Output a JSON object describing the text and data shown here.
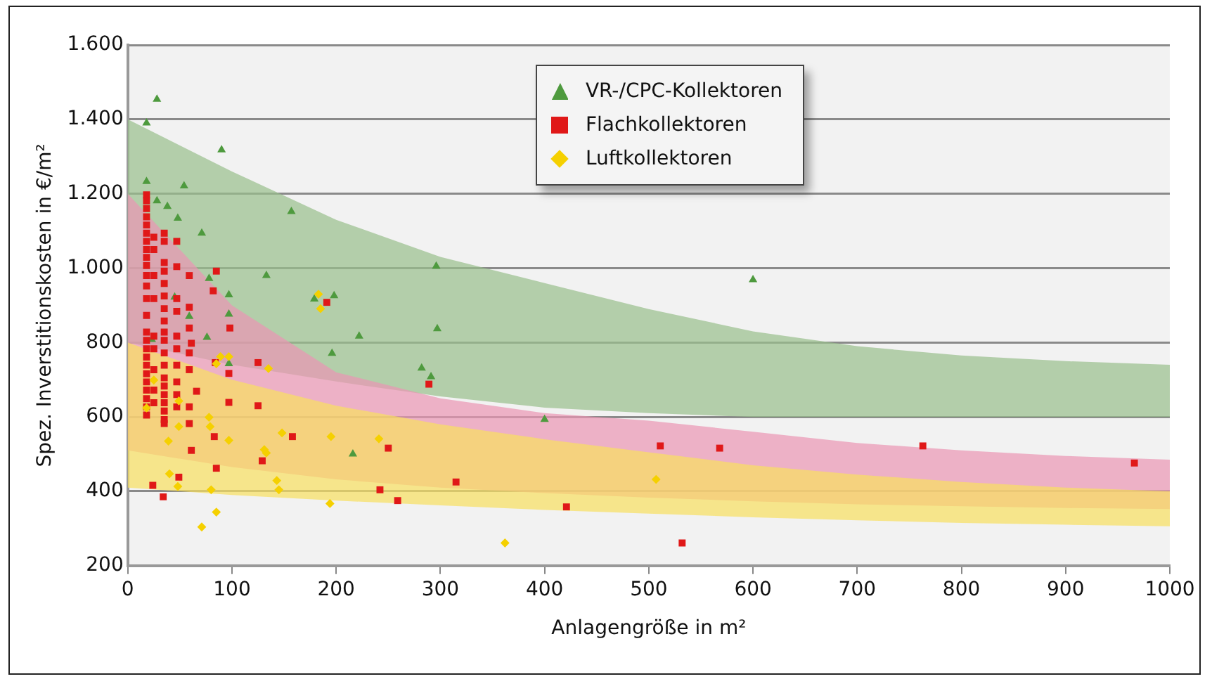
{
  "chart_data": {
    "type": "scatter",
    "xlabel": "Anlagengröße in m²",
    "ylabel": "Spez. Inverstitionskosten in €/m²",
    "xlim": [
      0,
      1000
    ],
    "xticks": [
      0,
      100,
      200,
      300,
      400,
      500,
      600,
      700,
      800,
      900,
      1000
    ],
    "ylim": [
      200,
      1600
    ],
    "yticks": [
      {
        "value": 200,
        "label": "200"
      },
      {
        "value": 400,
        "label": "400"
      },
      {
        "value": 600,
        "label": "600"
      },
      {
        "value": 800,
        "label": "800"
      },
      {
        "value": 1000,
        "label": "1.000"
      },
      {
        "value": 1200,
        "label": "1.200"
      },
      {
        "value": 1400,
        "label": "1.400"
      },
      {
        "value": 1600,
        "label": "1.600"
      }
    ],
    "grid": "y",
    "legend": "top",
    "series": [
      {
        "type": "area",
        "color": "#98bf8c",
        "x": [
          0,
          100,
          200,
          300,
          400,
          500,
          600,
          700,
          800,
          900,
          1000
        ],
        "values": [
          null,
          null,
          null,
          null,
          null,
          null,
          null,
          null,
          null,
          null,
          null
        ],
        "upper": [
          1400,
          1260,
          1130,
          1030,
          960,
          890,
          830,
          790,
          765,
          750,
          740
        ],
        "lower": [
          800,
          740,
          695,
          655,
          625,
          610,
          600,
          600,
          600,
          600,
          600
        ]
      },
      {
        "type": "area",
        "color": "#eb95b3",
        "x": [
          0,
          100,
          200,
          300,
          400,
          500,
          600,
          700,
          800,
          900,
          1000
        ],
        "values": [
          null,
          null,
          null,
          null,
          null,
          null,
          null,
          null,
          null,
          null,
          null
        ],
        "upper": [
          1200,
          900,
          720,
          650,
          610,
          590,
          560,
          530,
          510,
          495,
          485
        ],
        "lower": [
          510,
          465,
          432,
          410,
          395,
          383,
          373,
          365,
          360,
          355,
          352
        ]
      },
      {
        "type": "area",
        "color": "#f8e060",
        "x": [
          0,
          100,
          200,
          300,
          400,
          500,
          600,
          700,
          800,
          900,
          1000
        ],
        "values": [
          null,
          null,
          null,
          null,
          null,
          null,
          null,
          null,
          null,
          null,
          null
        ],
        "upper": [
          800,
          700,
          630,
          580,
          540,
          505,
          470,
          445,
          425,
          410,
          400
        ],
        "lower": [
          410,
          390,
          375,
          362,
          350,
          340,
          330,
          322,
          315,
          310,
          306
        ]
      },
      {
        "name": "VR-/CPC-Kollektoren",
        "color": "#4e9a3e",
        "marker": "triangle",
        "x": [
          28,
          18,
          90,
          18,
          54,
          28,
          38,
          48,
          157,
          71,
          296,
          133,
          78,
          97,
          198,
          179,
          45,
          97,
          59,
          297,
          222,
          76,
          23,
          196,
          97,
          282,
          291,
          216,
          600,
          400
        ],
        "values": [
          1454,
          1390,
          1318,
          1233,
          1221,
          1181,
          1166,
          1134,
          1152,
          1094,
          1005,
          980,
          972,
          928,
          926,
          917,
          922,
          876,
          870,
          837,
          817,
          814,
          808,
          771,
          743,
          731,
          708,
          500,
          969,
          593
        ]
      },
      {
        "name": "Flachkollektoren",
        "color": "#e01818",
        "marker": "square",
        "x": [
          18,
          18,
          18,
          18,
          18,
          18,
          18,
          18,
          18,
          18,
          18,
          18,
          18,
          18,
          18,
          18,
          18,
          18,
          18,
          18,
          18,
          18,
          18,
          18,
          18,
          35,
          35,
          35,
          35,
          35,
          35,
          35,
          35,
          35,
          35,
          35,
          35,
          35,
          35,
          35,
          35,
          35,
          35,
          35,
          25,
          25,
          25,
          25,
          25,
          25,
          25,
          25,
          25,
          47,
          47,
          47,
          47,
          47,
          47,
          47,
          47,
          47,
          47,
          59,
          59,
          59,
          59,
          59,
          59,
          59,
          85,
          82,
          98,
          191,
          61,
          84,
          125,
          97,
          66,
          97,
          125,
          289,
          83,
          158,
          61,
          129,
          250,
          85,
          49,
          24,
          34,
          315,
          242,
          259,
          511,
          568,
          763,
          966,
          421,
          532
        ],
        "values": [
          1197,
          1181,
          1160,
          1138,
          1116,
          1094,
          1072,
          1050,
          1029,
          1007,
          980,
          952,
          918,
          873,
          828,
          806,
          783,
          761,
          739,
          716,
          694,
          672,
          649,
          627,
          605,
          1094,
          1072,
          1015,
          992,
          959,
          925,
          891,
          858,
          828,
          806,
          772,
          739,
          705,
          683,
          660,
          638,
          616,
          593,
          582,
          1083,
          1050,
          980,
          918,
          817,
          783,
          727,
          672,
          638,
          1072,
          1004,
          918,
          884,
          817,
          783,
          739,
          694,
          660,
          627,
          980,
          895,
          839,
          772,
          727,
          627,
          582,
          992,
          939,
          839,
          908,
          798,
          746,
          746,
          717,
          669,
          639,
          630,
          688,
          547,
          547,
          510,
          482,
          516,
          462,
          438,
          416,
          385,
          425,
          404,
          375,
          522,
          516,
          522,
          476,
          358,
          261
        ]
      },
      {
        "name": "Luftkollektoren",
        "color": "#f5d000",
        "marker": "diamond",
        "x": [
          183,
          185,
          89,
          97,
          85,
          135,
          25,
          49,
          18,
          78,
          79,
          97,
          148,
          195,
          241,
          131,
          133,
          39,
          49,
          40,
          48,
          143,
          145,
          80,
          194,
          85,
          71,
          507,
          362
        ],
        "values": [
          930,
          891,
          762,
          762,
          743,
          730,
          699,
          643,
          624,
          599,
          574,
          537,
          557,
          547,
          541,
          512,
          503,
          535,
          574,
          447,
          413,
          429,
          404,
          404,
          367,
          344,
          304,
          432,
          261
        ]
      }
    ]
  }
}
